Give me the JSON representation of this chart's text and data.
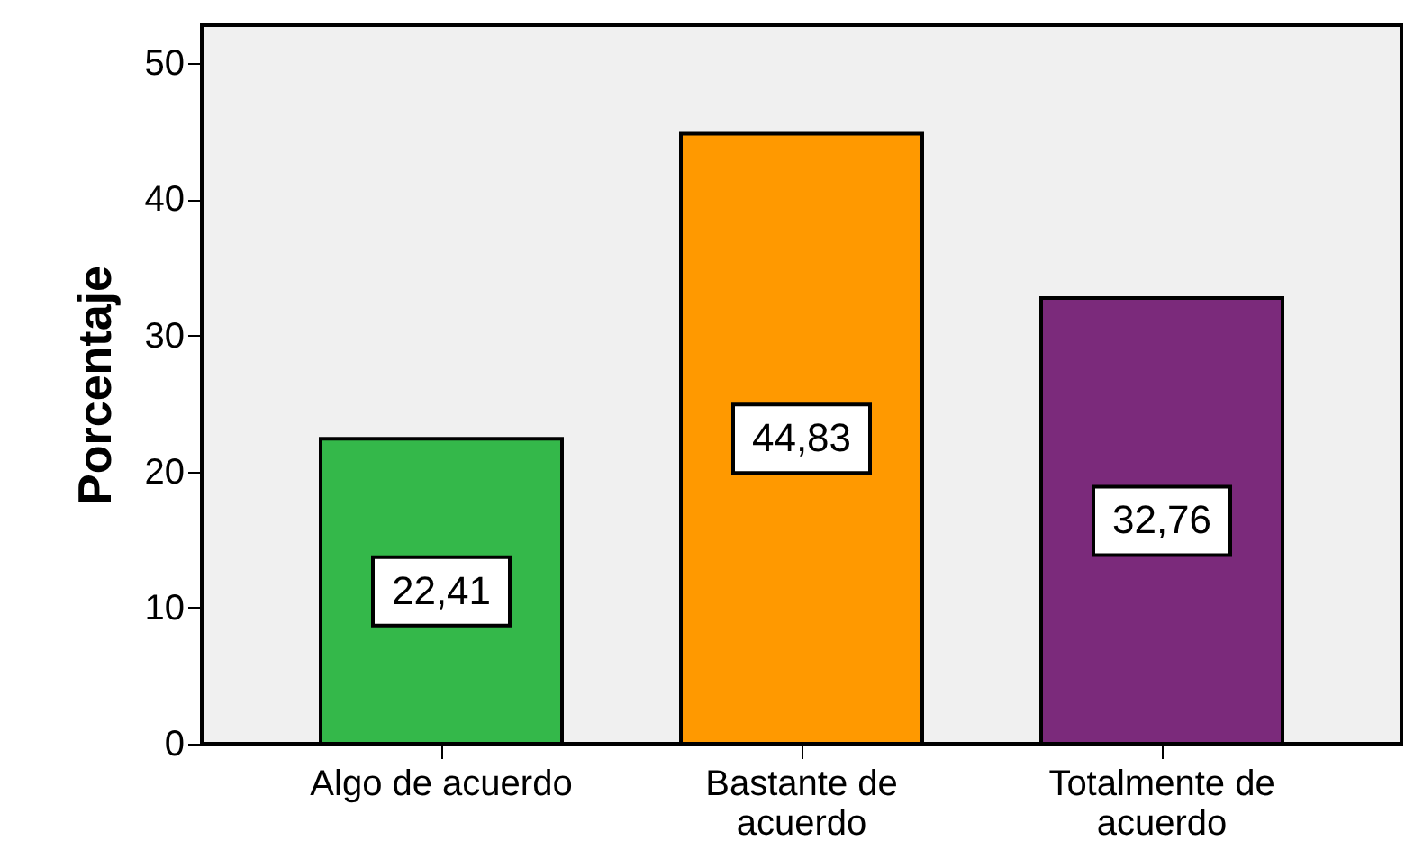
{
  "chart_data": {
    "type": "bar",
    "ylabel": "Porcentaje",
    "categories": [
      "Algo de acuerdo",
      "Bastante de acuerdo",
      "Totalmente de acuerdo"
    ],
    "values": [
      22.41,
      44.83,
      32.76
    ],
    "colors": [
      "#34b84a",
      "#ff9900",
      "#7b2a7b"
    ],
    "value_labels": [
      "22,41",
      "44,83",
      "32,76"
    ],
    "ylim": [
      0,
      52.8
    ],
    "yticks": [
      0,
      10,
      20,
      30,
      40,
      50
    ],
    "grid": false
  }
}
